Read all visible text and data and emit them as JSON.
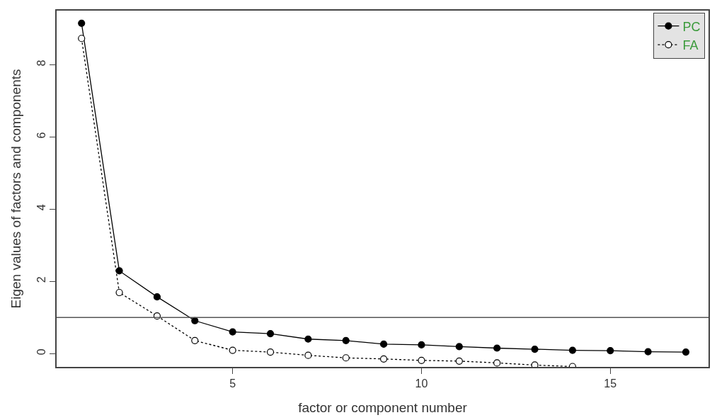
{
  "chart_data": {
    "type": "line",
    "xlabel": "factor or component number",
    "ylabel": "Eigen values of factors and components",
    "x": [
      1,
      2,
      3,
      4,
      5,
      6,
      7,
      8,
      9,
      10,
      11,
      12,
      13,
      14,
      15,
      16,
      17
    ],
    "series": [
      {
        "name": "PC",
        "color": "#000000",
        "line_style": "solid",
        "marker": "circle",
        "values": [
          9.15,
          2.29,
          1.57,
          0.91,
          0.6,
          0.55,
          0.4,
          0.36,
          0.26,
          0.24,
          0.19,
          0.15,
          0.12,
          0.09,
          0.08,
          0.05,
          0.04
        ]
      },
      {
        "name": "FA",
        "color": "#000000",
        "line_style": "dotted",
        "marker": "circle",
        "values": [
          8.73,
          1.69,
          1.04,
          0.36,
          0.09,
          0.04,
          -0.05,
          -0.12,
          -0.15,
          -0.19,
          -0.21,
          -0.26,
          -0.32,
          -0.36,
          null,
          null,
          null
        ]
      }
    ],
    "xlim": [
      0.34,
      17.6
    ],
    "xticks": [
      5,
      10,
      15
    ],
    "ylim": [
      -0.37,
      9.5
    ],
    "yticks": [
      0,
      2,
      4,
      6,
      8
    ],
    "ref_lines": [
      {
        "axis": "y",
        "value": 1,
        "color": "#555555"
      }
    ],
    "legend": "top right"
  }
}
